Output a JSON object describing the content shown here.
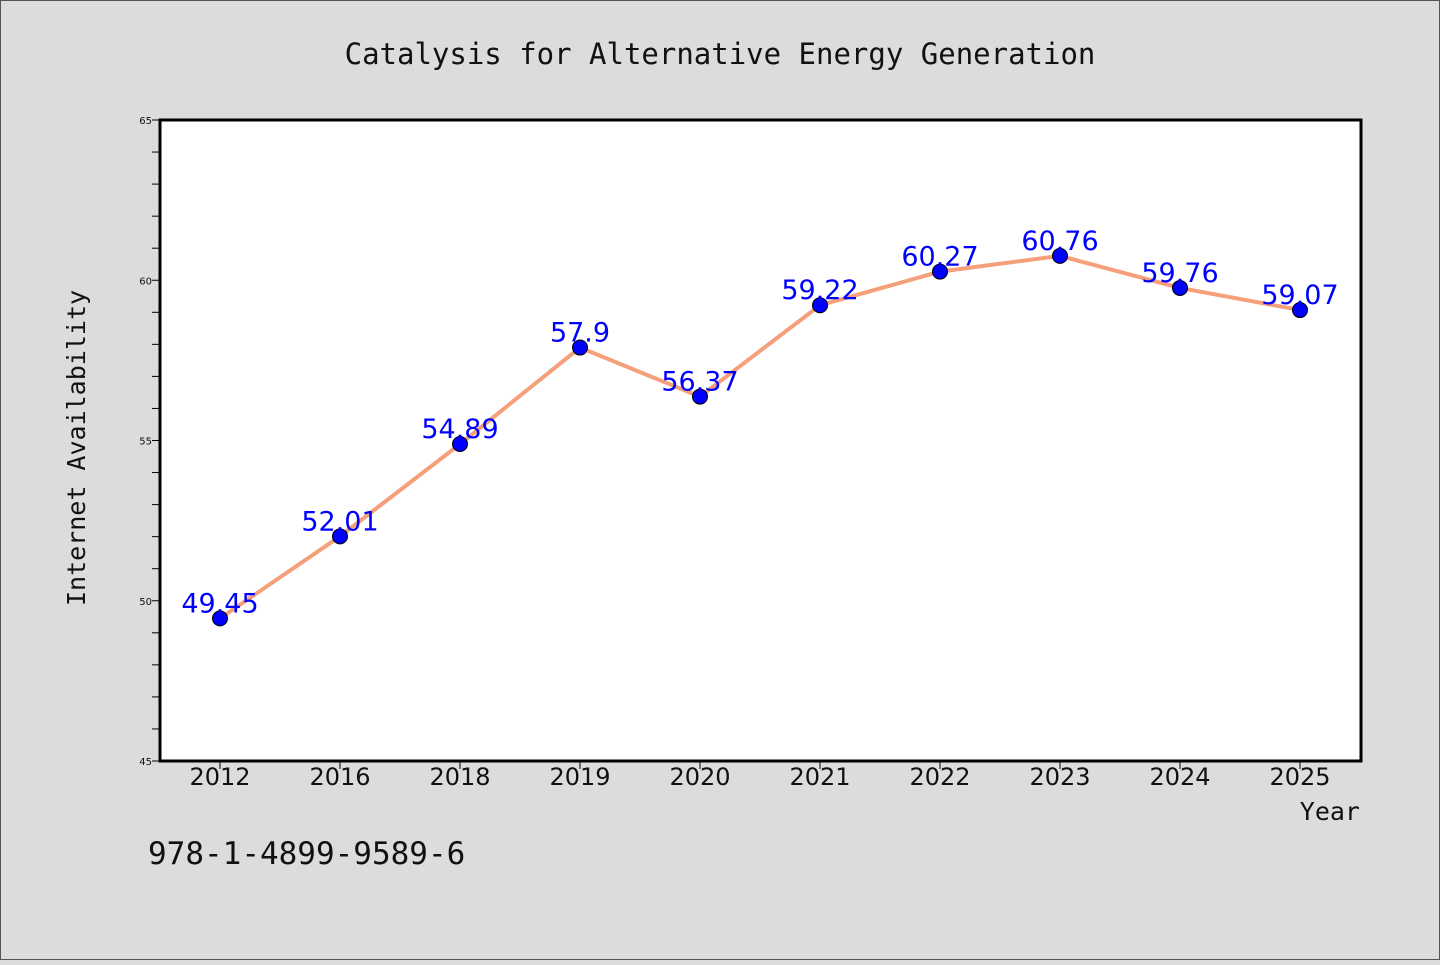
{
  "chart_data": {
    "type": "line",
    "title": "Catalysis for Alternative Energy Generation",
    "xlabel": "Year",
    "ylabel": "Internet Availability",
    "categories": [
      "2012",
      "2016",
      "2018",
      "2019",
      "2020",
      "2021",
      "2022",
      "2023",
      "2024",
      "2025"
    ],
    "series": [
      {
        "values": [
          49.45,
          52.01,
          54.89,
          57.9,
          56.37,
          59.22,
          60.27,
          60.76,
          59.76,
          59.07
        ],
        "data_labels": [
          "49.45",
          "52.01",
          "54.89",
          "57.9",
          "56.37",
          "59.22",
          "60.27",
          "60.76",
          "59.76",
          "59.07"
        ],
        "line_color": "#f5a07a",
        "marker_color": "#0000ff"
      }
    ],
    "ylim": [
      45,
      65
    ],
    "yticks": [
      45,
      50,
      55,
      60,
      65
    ],
    "ytick_labels": [
      "45",
      "50",
      "55",
      "60",
      "65"
    ],
    "grid": false,
    "legend": "none",
    "label_color": "#0000ff",
    "background_color": "#dcdcdc",
    "plot_background_color": "#ffffff"
  },
  "footnote": "978-1-4899-9589-6"
}
